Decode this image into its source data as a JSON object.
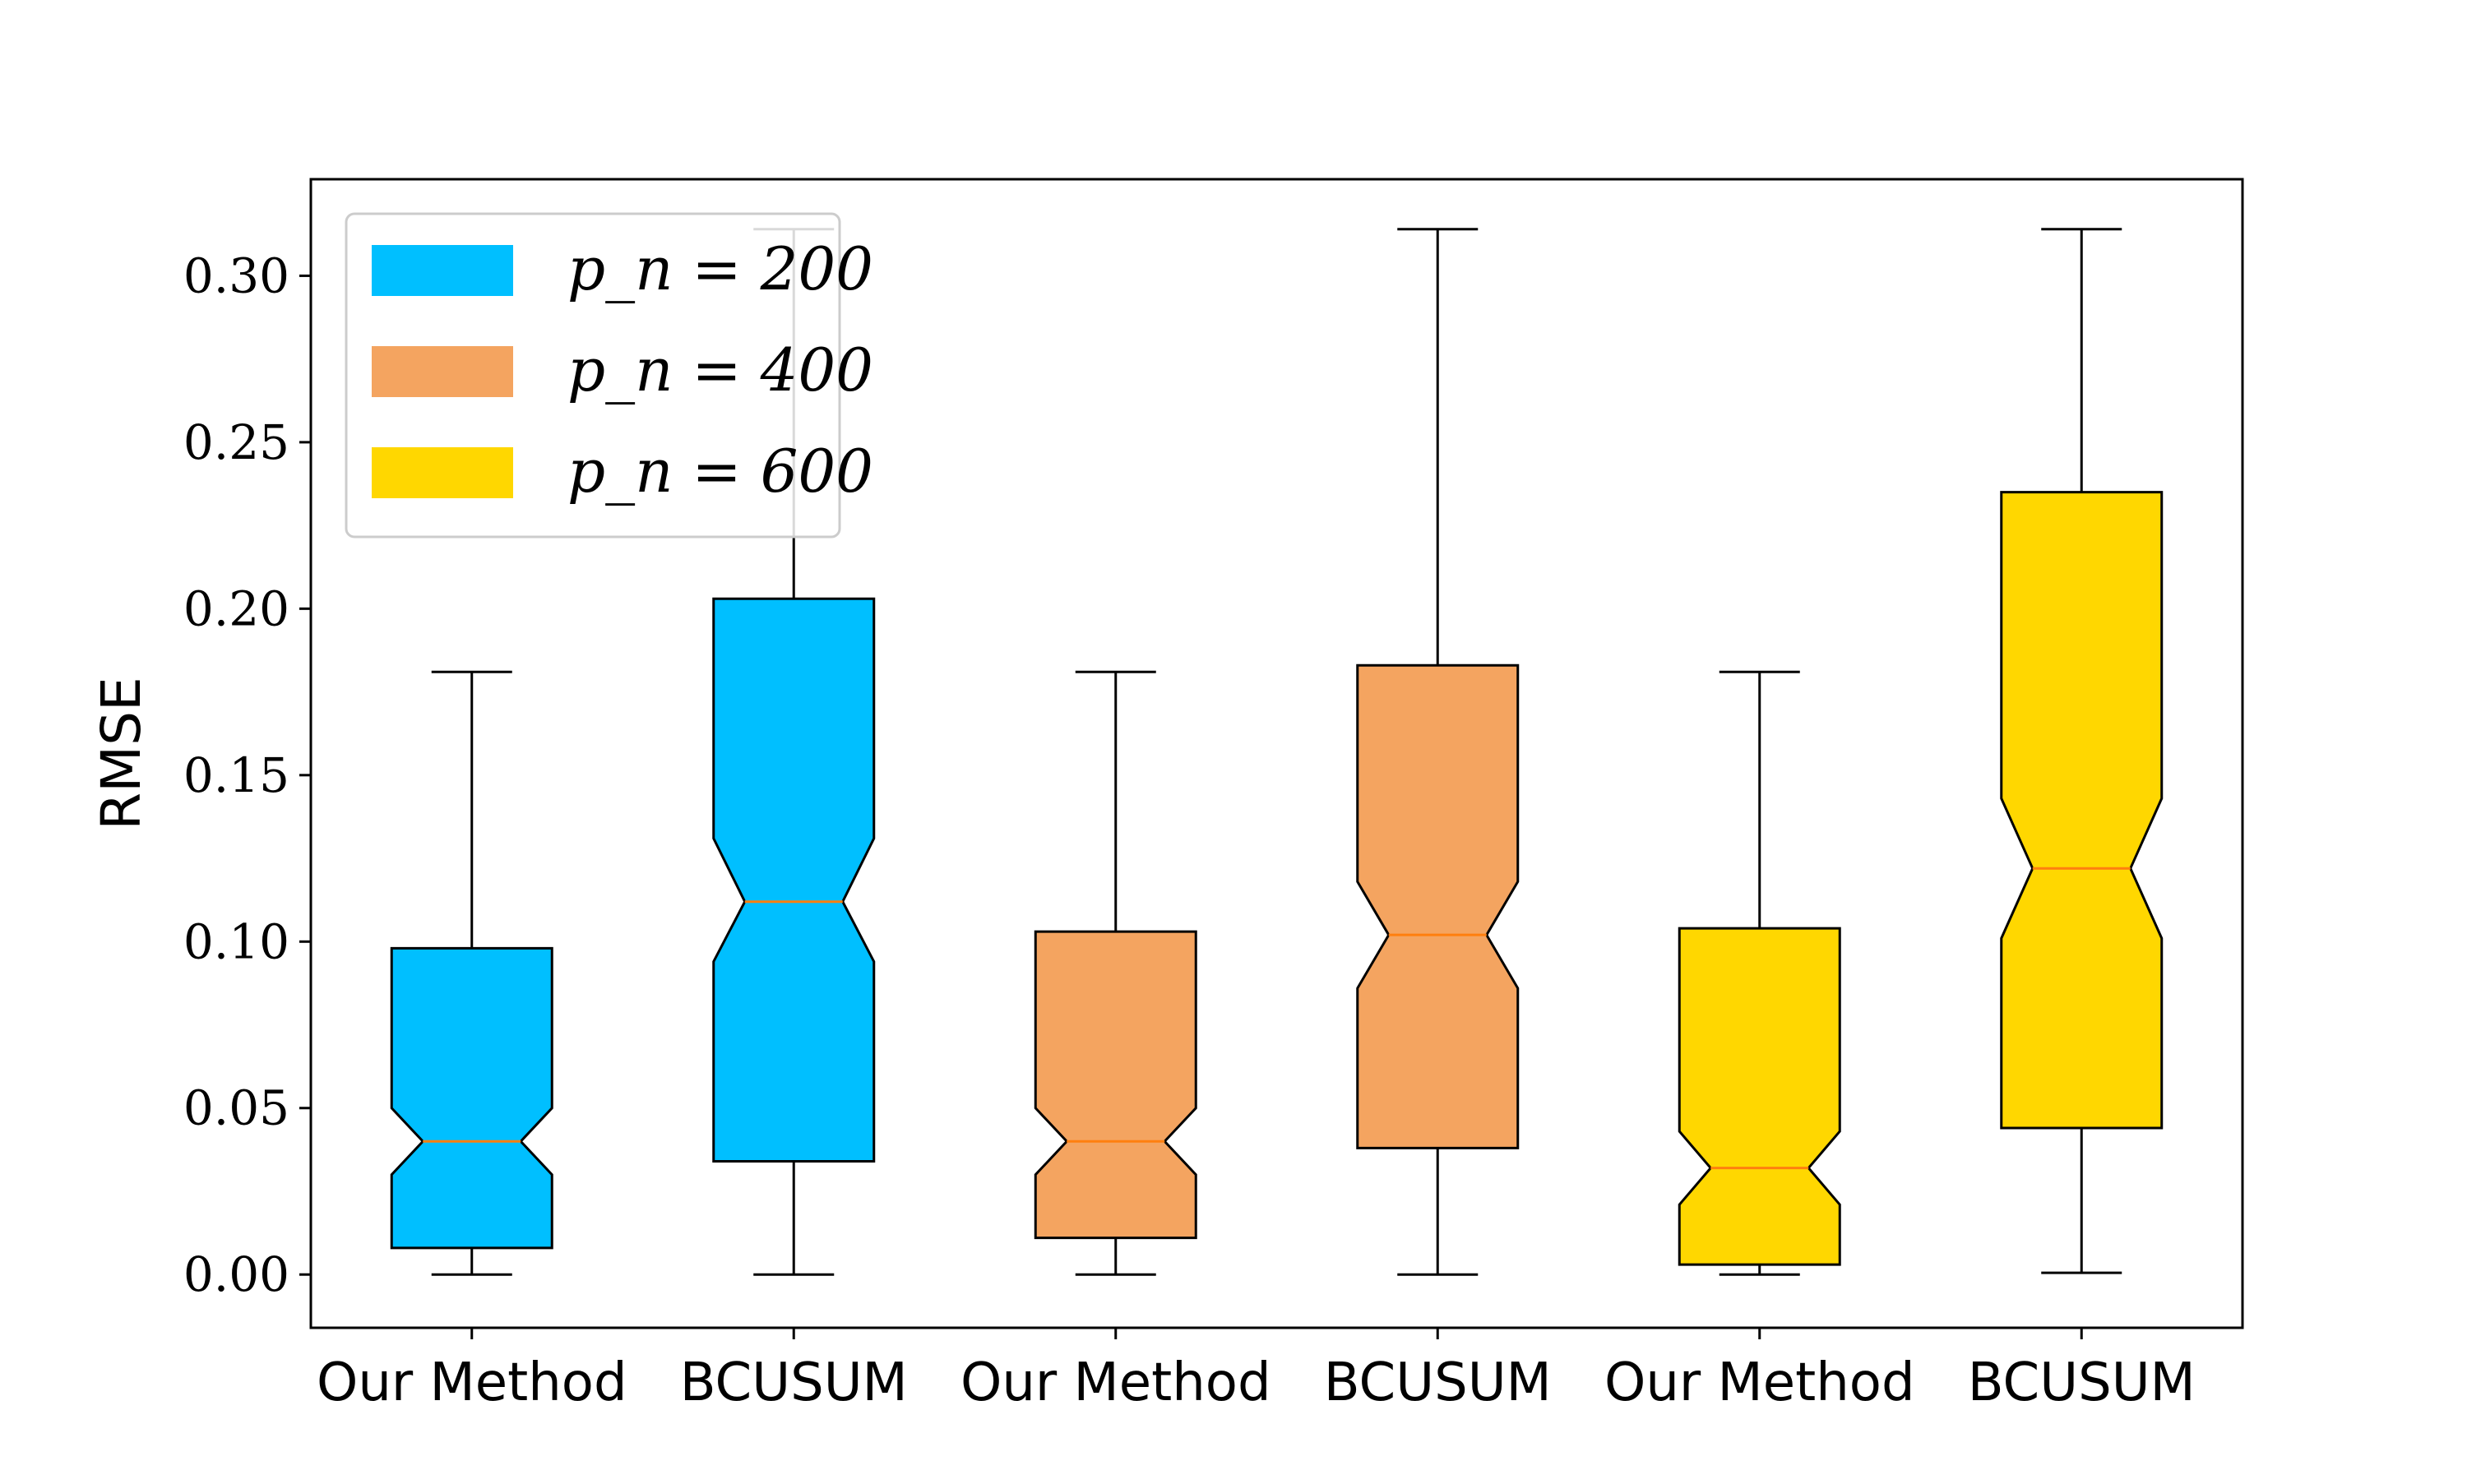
{
  "chart_data": {
    "type": "boxplot",
    "notched": true,
    "categories": [
      "Our Method",
      "BCUSUM",
      "Our Method",
      "BCUSUM",
      "Our Method",
      "BCUSUM"
    ],
    "ylabel": "RMSE",
    "xlabel": "",
    "title": "",
    "ylim": [
      -0.016,
      0.329
    ],
    "yticks": [
      "0.00",
      "0.05",
      "0.10",
      "0.15",
      "0.20",
      "0.25",
      "0.30"
    ],
    "grid": false,
    "legend": {
      "placement": "top-left",
      "entries": [
        {
          "label": "p_n = 200",
          "color": "#00BFFF"
        },
        {
          "label": "p_n = 400",
          "color": "#F4A460"
        },
        {
          "label": "p_n = 600",
          "color": "#FFD700"
        }
      ]
    },
    "median_color": "#FF7F0E",
    "series": [
      {
        "category": "Our Method",
        "group": "p_n = 200",
        "color": "#00BFFF",
        "whisker_low": 0.0,
        "q1": 0.008,
        "median": 0.04,
        "q3": 0.098,
        "whisker_high": 0.181,
        "notch_low": 0.03,
        "notch_high": 0.05
      },
      {
        "category": "BCUSUM",
        "group": "p_n = 200",
        "color": "#00BFFF",
        "whisker_low": 0.0,
        "q1": 0.034,
        "median": 0.112,
        "q3": 0.203,
        "whisker_high": 0.314,
        "notch_low": 0.094,
        "notch_high": 0.131
      },
      {
        "category": "Our Method",
        "group": "p_n = 400",
        "color": "#F4A460",
        "whisker_low": 0.0,
        "q1": 0.011,
        "median": 0.04,
        "q3": 0.103,
        "whisker_high": 0.181,
        "notch_low": 0.03,
        "notch_high": 0.05
      },
      {
        "category": "BCUSUM",
        "group": "p_n = 400",
        "color": "#F4A460",
        "whisker_low": 0.0,
        "q1": 0.038,
        "median": 0.102,
        "q3": 0.183,
        "whisker_high": 0.314,
        "notch_low": 0.086,
        "notch_high": 0.118
      },
      {
        "category": "Our Method",
        "group": "p_n = 600",
        "color": "#FFD700",
        "whisker_low": 0.0,
        "q1": 0.003,
        "median": 0.032,
        "q3": 0.104,
        "whisker_high": 0.181,
        "notch_low": 0.021,
        "notch_high": 0.043
      },
      {
        "category": "BCUSUM",
        "group": "p_n = 600",
        "color": "#FFD700",
        "whisker_low": 0.0005,
        "q1": 0.044,
        "median": 0.122,
        "q3": 0.235,
        "whisker_high": 0.314,
        "notch_low": 0.101,
        "notch_high": 0.143
      }
    ]
  }
}
